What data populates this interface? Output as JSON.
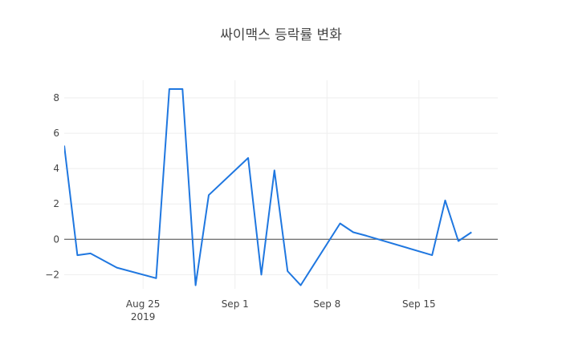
{
  "chart_data": {
    "type": "line",
    "title": "싸이맥스 등락률 변화",
    "xlabel": "",
    "ylabel": "",
    "x_axis": {
      "type": "date",
      "range": [
        "2019-08-19",
        "2019-09-21"
      ],
      "ticks": [
        {
          "date": "2019-08-25",
          "label": "Aug 25",
          "sublabel": "2019"
        },
        {
          "date": "2019-09-01",
          "label": "Sep 1",
          "sublabel": ""
        },
        {
          "date": "2019-09-08",
          "label": "Sep 8",
          "sublabel": ""
        },
        {
          "date": "2019-09-15",
          "label": "Sep 15",
          "sublabel": ""
        }
      ]
    },
    "y_axis": {
      "range": [
        -2.8,
        9
      ],
      "ticks": [
        -2,
        0,
        2,
        4,
        6,
        8
      ],
      "tick_labels": [
        "−2",
        "0",
        "2",
        "4",
        "6",
        "8"
      ],
      "zero_line": true
    },
    "grid": true,
    "legend": "none",
    "line_color": "#1f77e0",
    "series": [
      {
        "x": [
          "2019-08-19",
          "2019-08-20",
          "2019-08-21",
          "2019-08-22",
          "2019-08-23",
          "2019-08-26",
          "2019-08-27",
          "2019-08-28",
          "2019-08-29",
          "2019-08-30",
          "2019-09-02",
          "2019-09-03",
          "2019-09-04",
          "2019-09-05",
          "2019-09-06",
          "2019-09-09",
          "2019-09-10",
          "2019-09-11",
          "2019-09-16",
          "2019-09-17",
          "2019-09-18",
          "2019-09-19"
        ],
        "y": [
          5.3,
          -0.9,
          -0.8,
          -1.2,
          -1.6,
          -2.2,
          8.5,
          8.5,
          -2.6,
          2.5,
          4.6,
          -2.0,
          3.9,
          -1.8,
          -2.6,
          0.9,
          0.4,
          0.2,
          -0.9,
          2.2,
          -0.1,
          0.4
        ]
      }
    ]
  }
}
